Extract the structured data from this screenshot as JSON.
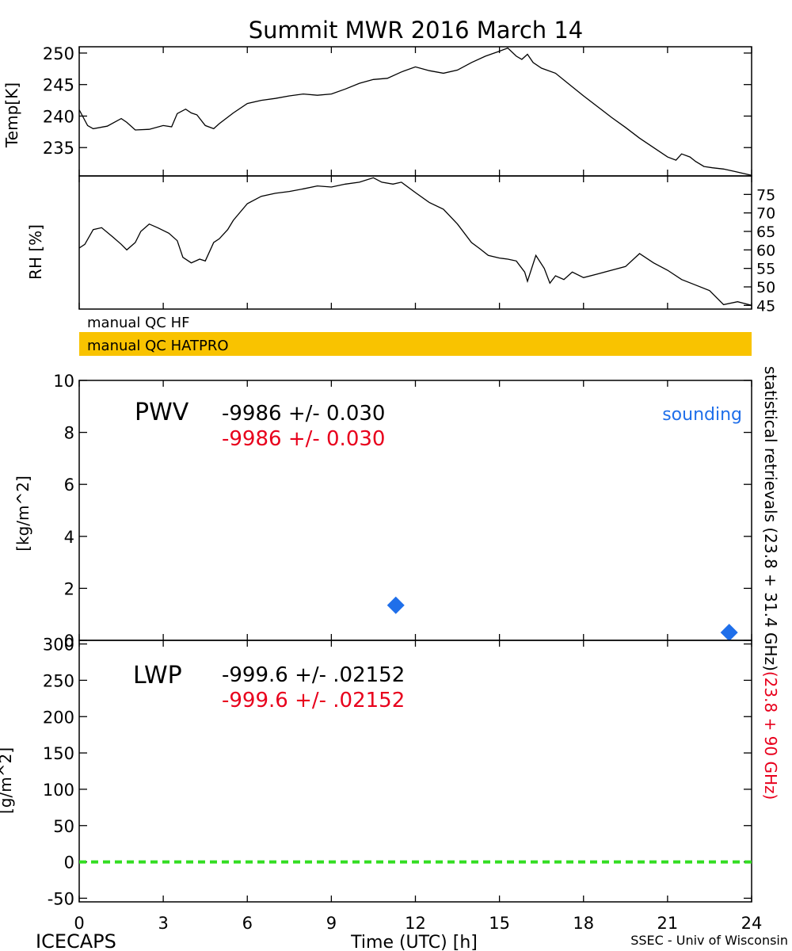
{
  "title": "Summit MWR 2016 March 14",
  "footer": {
    "left": "ICECAPS",
    "center": "Time (UTC) [h]",
    "right": "SSEC - Univ of Wisconsin"
  },
  "right_label": {
    "black": "statistical retrievals (23.8 + 31.4 GHz)",
    "red": "(23.8 + 90 GHz)"
  },
  "colors": {
    "axis": "#000000",
    "hatpro_bar": "#f9c300",
    "sounding": "#1f6fea",
    "alt_retrieval": "#e8001c",
    "zero_line": "#33dd22"
  },
  "qc_bars": {
    "hf_label": "manual QC HF",
    "hatpro_label": "manual QC HATPRO"
  },
  "chart_data": [
    {
      "id": "temp",
      "type": "line",
      "ylabel": "Temp[K]",
      "xlim": [
        0,
        24
      ],
      "ylim": [
        230.5,
        251
      ],
      "yticks": [
        235,
        240,
        245,
        250
      ],
      "grid": false,
      "x": [
        0,
        0.3,
        0.5,
        1.0,
        1.5,
        1.7,
        2.0,
        2.5,
        3.0,
        3.3,
        3.5,
        3.8,
        4.0,
        4.2,
        4.5,
        4.8,
        5.0,
        5.5,
        6.0,
        6.5,
        7.0,
        7.5,
        8.0,
        8.5,
        9.0,
        9.5,
        10.0,
        10.5,
        11.0,
        11.5,
        12.0,
        12.5,
        13.0,
        13.5,
        14.0,
        14.5,
        15.0,
        15.3,
        15.6,
        15.8,
        16.0,
        16.2,
        16.5,
        17.0,
        17.5,
        18.0,
        18.5,
        19.0,
        19.5,
        20.0,
        20.5,
        21.0,
        21.3,
        21.5,
        21.8,
        22.0,
        22.3,
        22.6,
        23.0,
        23.4,
        24.0
      ],
      "y": [
        241.0,
        238.5,
        238.0,
        238.4,
        239.6,
        239.0,
        237.8,
        237.9,
        238.5,
        238.3,
        240.4,
        241.1,
        240.5,
        240.2,
        238.5,
        238.0,
        238.8,
        240.5,
        242.0,
        242.5,
        242.8,
        243.2,
        243.5,
        243.3,
        243.5,
        244.3,
        245.2,
        245.8,
        246.0,
        247.0,
        247.8,
        247.2,
        246.8,
        247.3,
        248.5,
        249.5,
        250.3,
        250.8,
        249.5,
        249.0,
        249.8,
        248.5,
        247.6,
        246.8,
        245.0,
        243.2,
        241.5,
        239.8,
        238.2,
        236.5,
        235.0,
        233.5,
        233.0,
        234.0,
        233.5,
        232.8,
        232.0,
        231.8,
        231.6,
        231.2,
        230.6
      ]
    },
    {
      "id": "rh",
      "type": "line",
      "ylabel": "RH [%]",
      "xlim": [
        0,
        24
      ],
      "ylim": [
        44,
        80
      ],
      "yticks": [
        45,
        50,
        55,
        60,
        65,
        70,
        75
      ],
      "grid": false,
      "x": [
        0,
        0.2,
        0.5,
        0.8,
        1.2,
        1.5,
        1.7,
        2.0,
        2.2,
        2.5,
        2.8,
        3.2,
        3.5,
        3.7,
        4.0,
        4.3,
        4.5,
        4.8,
        5.0,
        5.3,
        5.5,
        6.0,
        6.5,
        7.0,
        7.5,
        8.0,
        8.5,
        9.0,
        9.5,
        10.0,
        10.5,
        10.8,
        11.2,
        11.5,
        12.0,
        12.5,
        13.0,
        13.5,
        14.0,
        14.3,
        14.6,
        15.0,
        15.3,
        15.6,
        15.9,
        16.0,
        16.3,
        16.6,
        16.8,
        17.0,
        17.3,
        17.6,
        18.0,
        18.5,
        19.0,
        19.5,
        20.0,
        20.5,
        21.0,
        21.5,
        22.0,
        22.5,
        23.0,
        23.5,
        24.0
      ],
      "y": [
        60.5,
        61.5,
        65.5,
        66.0,
        63.5,
        61.5,
        60.0,
        62.0,
        65.0,
        67.0,
        66.0,
        64.5,
        62.5,
        58.0,
        56.5,
        57.5,
        57.0,
        62.0,
        63.0,
        65.5,
        68.0,
        72.5,
        74.5,
        75.3,
        75.8,
        76.5,
        77.3,
        77.0,
        77.8,
        78.3,
        79.5,
        78.3,
        77.8,
        78.3,
        75.5,
        72.8,
        71.0,
        67.0,
        62.0,
        60.3,
        58.5,
        57.8,
        57.5,
        57.0,
        54.0,
        51.5,
        58.5,
        55.0,
        51.0,
        53.0,
        52.0,
        54.0,
        52.5,
        53.5,
        54.5,
        55.5,
        59.0,
        56.5,
        54.5,
        52.0,
        50.5,
        49.0,
        45.2,
        46.0,
        45.0
      ]
    },
    {
      "id": "pwv",
      "type": "scatter",
      "ylabel": "[kg/m^2]",
      "label": "PWV",
      "value_black": "-9986 +/- 0.030",
      "value_red": "-9986 +/- 0.030",
      "legend": "sounding",
      "legend_position": "top-right",
      "xlim": [
        0,
        24
      ],
      "ylim": [
        0,
        10
      ],
      "yticks": [
        0,
        2,
        4,
        6,
        8,
        10
      ],
      "grid": false,
      "points": [
        {
          "x": 11.3,
          "y": 1.35
        },
        {
          "x": 23.2,
          "y": 0.3
        }
      ]
    },
    {
      "id": "lwp",
      "type": "line",
      "ylabel": "[g/m^2]",
      "label": "LWP",
      "value_black": "-999.6 +/- .02152",
      "value_red": "-999.6 +/- .02152",
      "xlim": [
        0,
        24
      ],
      "ylim": [
        -55,
        305
      ],
      "yticks": [
        -50,
        0,
        50,
        100,
        150,
        200,
        250,
        300
      ],
      "grid": false,
      "zero_line": {
        "y": 0,
        "style": "dashed"
      }
    }
  ],
  "x_axis": {
    "ticks": [
      0,
      3,
      6,
      9,
      12,
      15,
      18,
      21,
      24
    ],
    "tick_labels": [
      "0",
      "3",
      "6",
      "9",
      "12",
      "15",
      "18",
      "21",
      "24"
    ]
  }
}
